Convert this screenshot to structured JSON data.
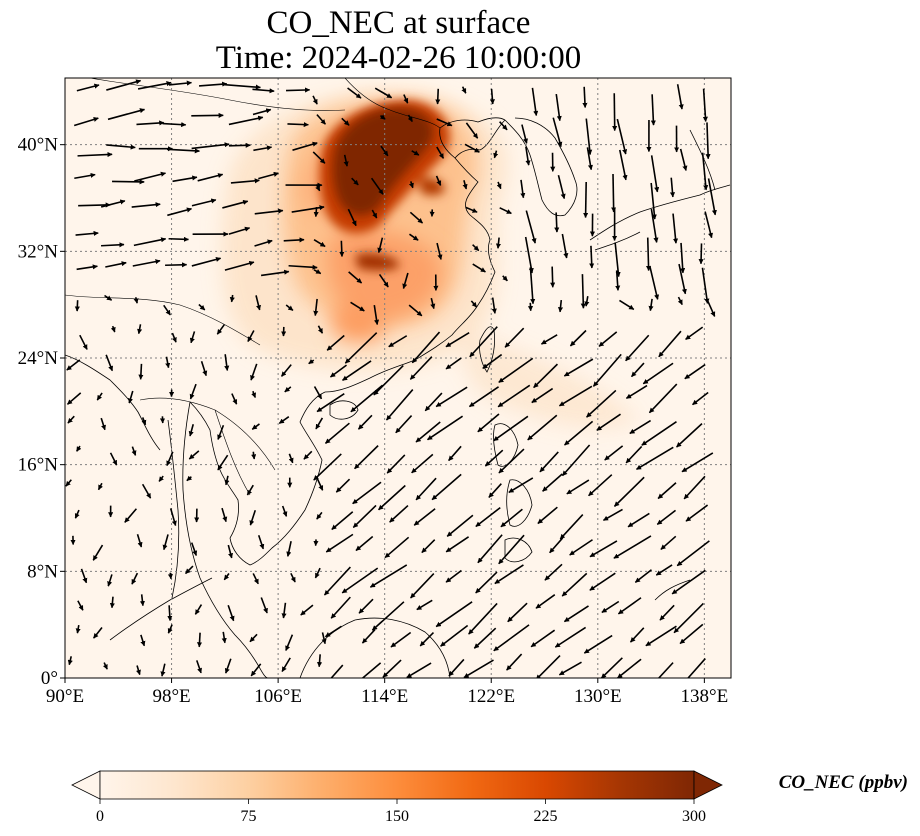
{
  "title": {
    "line1": "CO_NEC at surface",
    "line2": "Time: 2024-02-26 10:00:00"
  },
  "map": {
    "variable": "CO_NEC",
    "level": "surface",
    "lon_range": [
      90,
      140
    ],
    "lat_range": [
      0,
      45
    ],
    "x_ticks": [
      {
        "value": 90,
        "label": "90°E"
      },
      {
        "value": 98,
        "label": "98°E"
      },
      {
        "value": 106,
        "label": "106°E"
      },
      {
        "value": 114,
        "label": "114°E"
      },
      {
        "value": 122,
        "label": "122°E"
      },
      {
        "value": 130,
        "label": "130°E"
      },
      {
        "value": 138,
        "label": "138°E"
      }
    ],
    "y_ticks": [
      {
        "value": 0,
        "label": "0°"
      },
      {
        "value": 8,
        "label": "8°N"
      },
      {
        "value": 16,
        "label": "16°N"
      },
      {
        "value": 24,
        "label": "24°N"
      },
      {
        "value": 32,
        "label": "32°N"
      },
      {
        "value": 40,
        "label": "40°N"
      }
    ],
    "grid": true,
    "background_color": "#fff5eb",
    "coastline_color": "#000000",
    "vector_color": "#000000"
  },
  "colorbar": {
    "label": "CO_NEC (ppbv)",
    "min": 0,
    "max": 300,
    "extend": "both",
    "ticks": [
      {
        "value": 0,
        "label": "0"
      },
      {
        "value": 75,
        "label": "75"
      },
      {
        "value": 150,
        "label": "150"
      },
      {
        "value": 225,
        "label": "225"
      },
      {
        "value": 300,
        "label": "300"
      }
    ],
    "colormap": [
      "#fff5eb",
      "#fee6ce",
      "#fdd0a2",
      "#fdae6b",
      "#fd8d3c",
      "#f16913",
      "#d94801",
      "#a63603",
      "#7f2704"
    ]
  }
}
